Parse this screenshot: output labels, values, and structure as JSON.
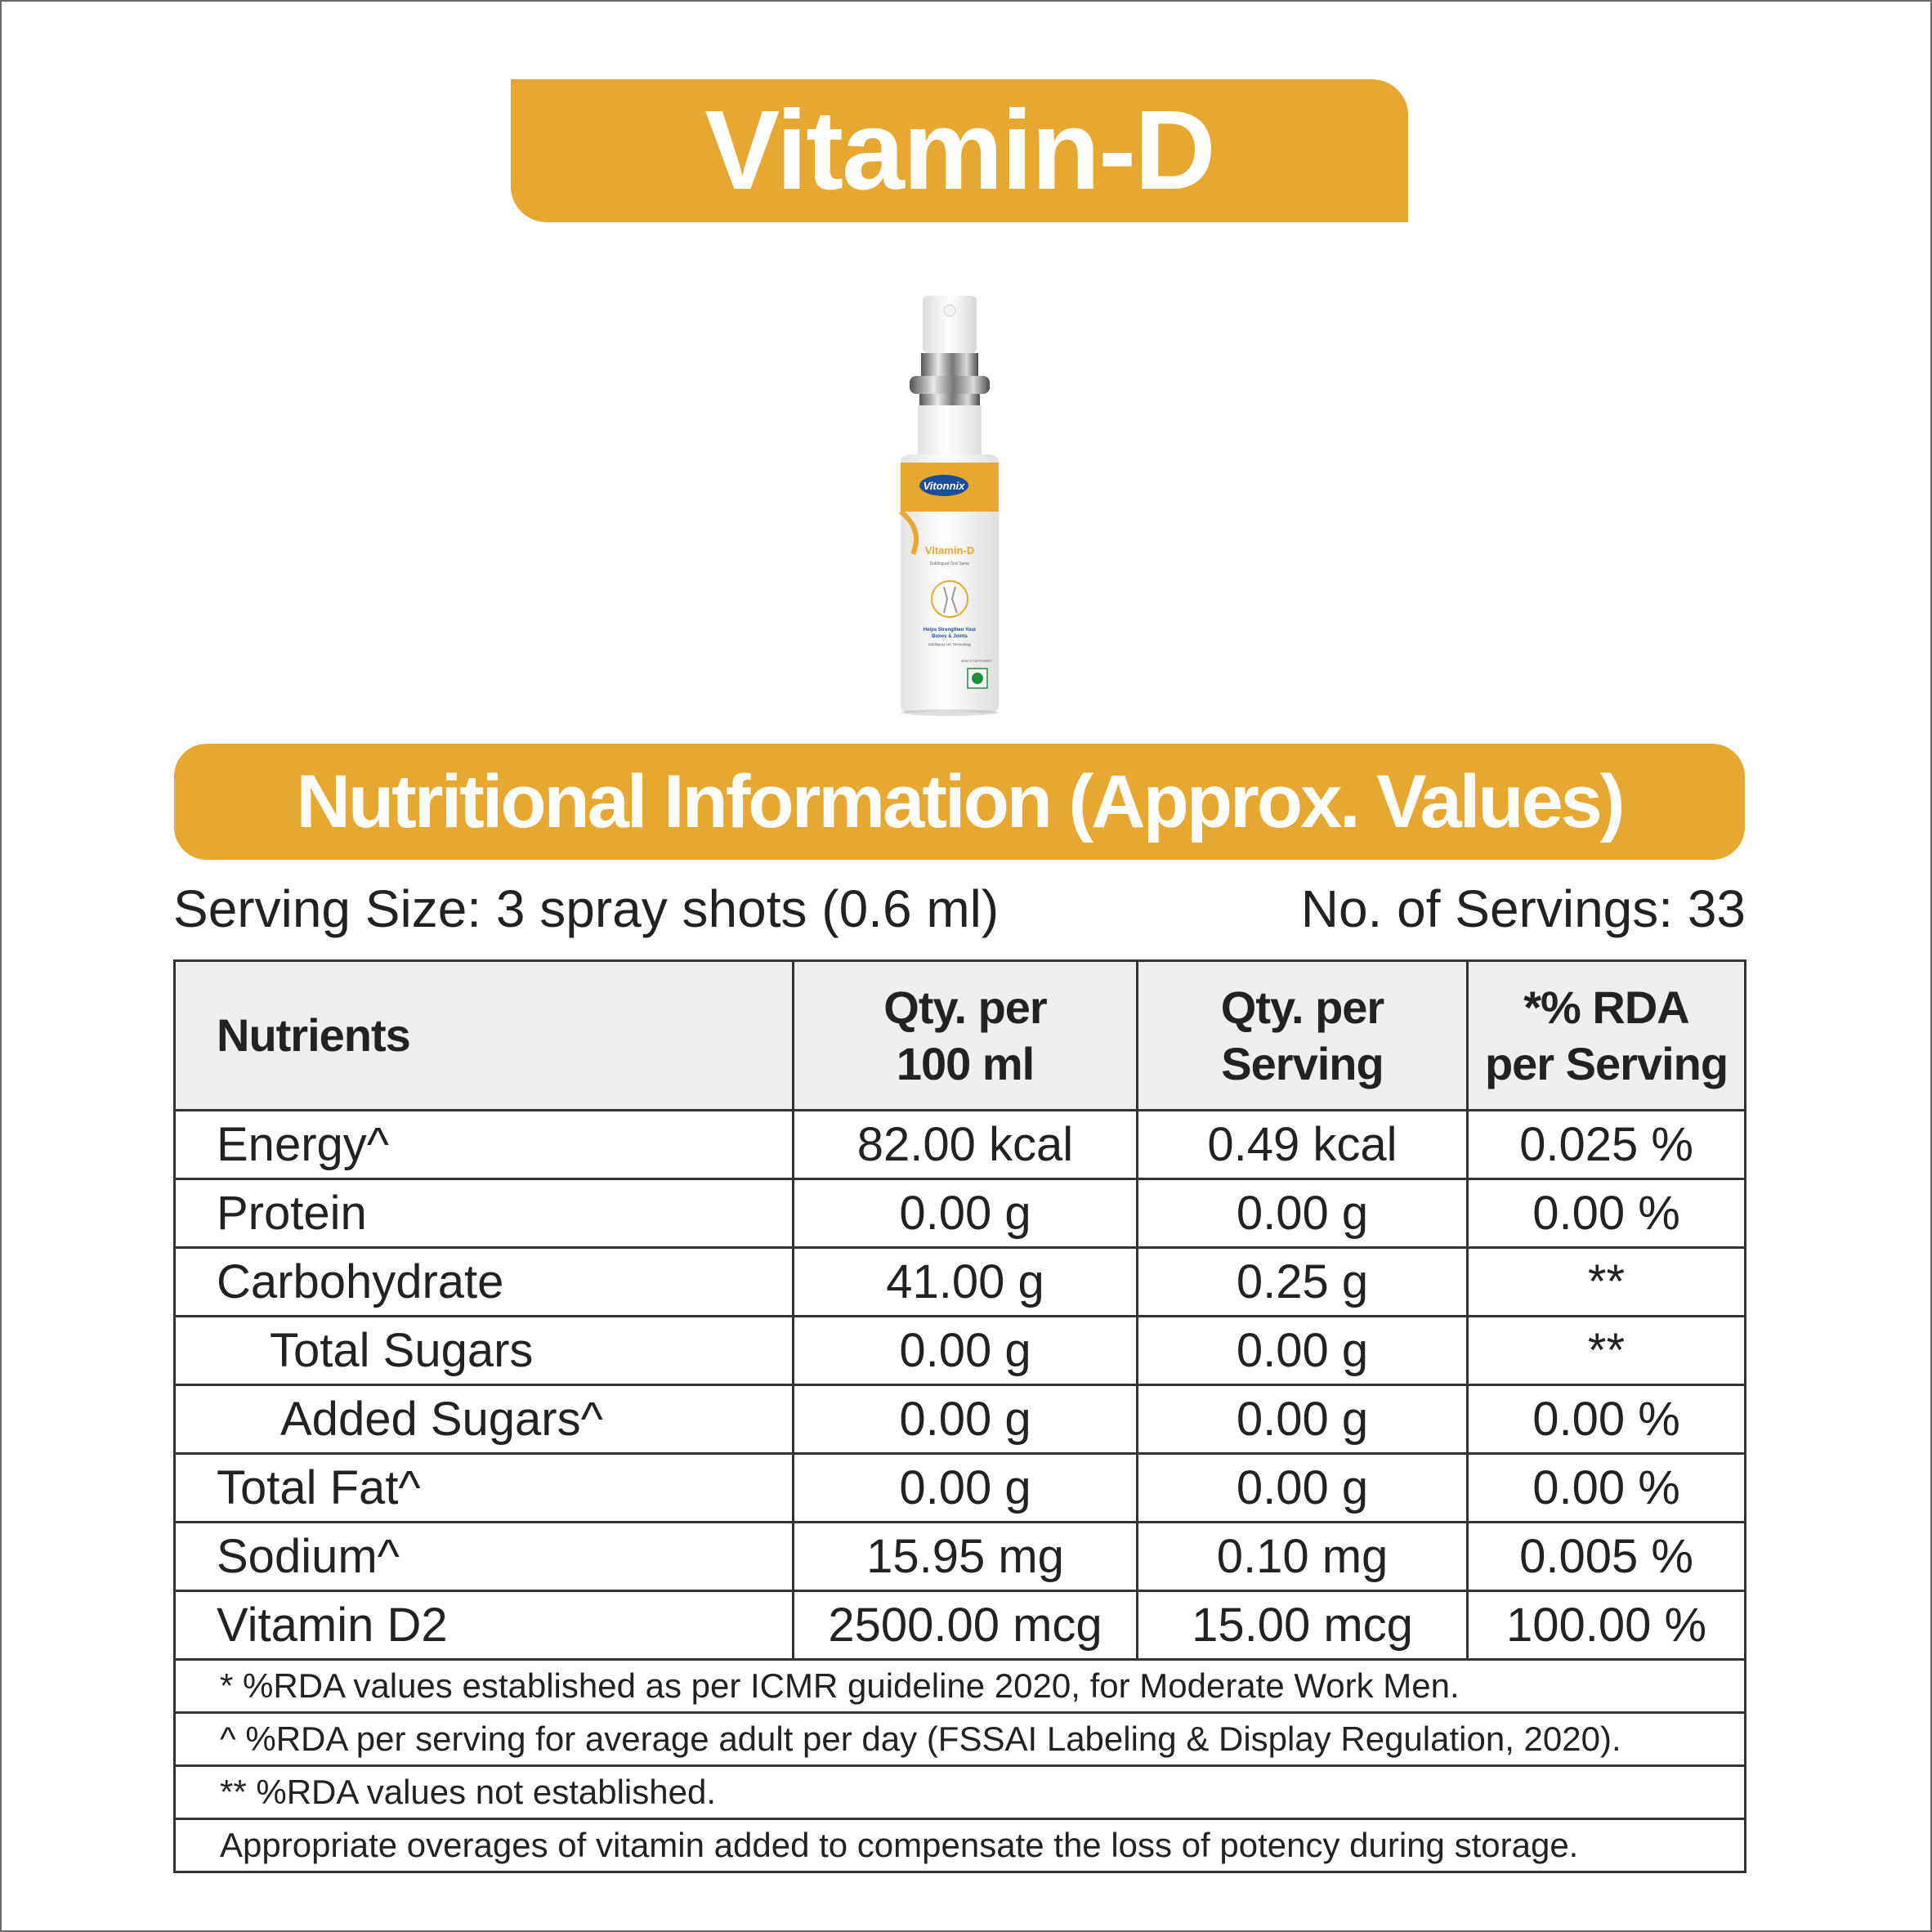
{
  "title": "Vitamin-D",
  "product": {
    "brand": "Vitonnix",
    "label_title": "Vitamin-D",
    "subtitle": "Sublingual Oral Spray",
    "tagline_1": "Helps Strengthen Your",
    "tagline_2": "Bones & Joints",
    "tech": "Subllspray UK Technology",
    "supplement": "HEALTH SUPPLEMENT"
  },
  "section_title": "Nutritional Information (Approx. Values)",
  "serving_size": "Serving Size: 3 spray shots (0.6 ml)",
  "servings_count": "No. of Servings: 33",
  "table": {
    "headers": {
      "nutrients": "Nutrients",
      "per100_l1": "Qty. per",
      "per100_l2": "100 ml",
      "perserv_l1": "Qty. per",
      "perserv_l2": "Serving",
      "rda_l1": "*% RDA",
      "rda_l2": "per Serving"
    },
    "rows": [
      {
        "name": "Energy^",
        "per100": "82.00 kcal",
        "serving": "0.49 kcal",
        "rda": "0.025 %"
      },
      {
        "name": "Protein",
        "per100": "0.00 g",
        "serving": "0.00 g",
        "rda": "0.00 %"
      },
      {
        "name": "Carbohydrate",
        "per100": "41.00 g",
        "serving": "0.25 g",
        "rda": "**"
      },
      {
        "name": "Total Sugars",
        "per100": "0.00 g",
        "serving": "0.00 g",
        "rda": "**"
      },
      {
        "name": "Added Sugars^",
        "per100": "0.00 g",
        "serving": "0.00 g",
        "rda": "0.00 %"
      },
      {
        "name": "Total Fat^",
        "per100": "0.00 g",
        "serving": "0.00 g",
        "rda": "0.00 %"
      },
      {
        "name": "Sodium^",
        "per100": "15.95 mg",
        "serving": "0.10 mg",
        "rda": "0.005 %"
      },
      {
        "name": "Vitamin D2",
        "per100": "2500.00 mcg",
        "serving": "15.00 mcg",
        "rda": "100.00 %"
      }
    ],
    "footnotes": [
      "* %RDA values established as per ICMR guideline 2020, for Moderate Work Men.",
      "^ %RDA per serving for average adult per day (FSSAI Labeling & Display Regulation, 2020).",
      "** %RDA values not established.",
      "Appropriate overages of vitamin added to compensate the loss of potency during storage."
    ]
  },
  "colors": {
    "accent": "#e6a830",
    "header_bg": "#efefef",
    "text": "#222222",
    "border": "#333333"
  }
}
